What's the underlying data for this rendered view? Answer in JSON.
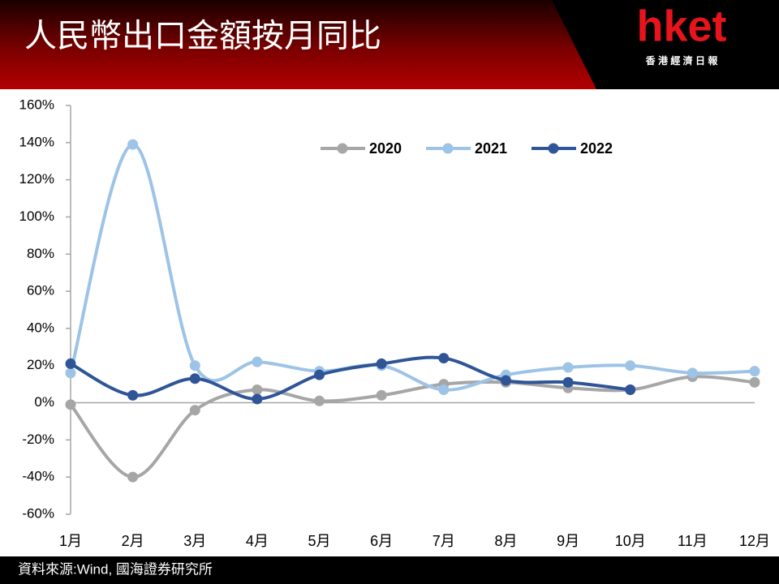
{
  "chart_data": {
    "type": "line",
    "title": "人民幣出口金額按月同比",
    "source": "資料來源:Wind, 國海證券研究所",
    "categories": [
      "1月",
      "2月",
      "3月",
      "4月",
      "5月",
      "6月",
      "7月",
      "8月",
      "9月",
      "10月",
      "11月",
      "12月"
    ],
    "series": [
      {
        "name": "2020",
        "color": "#a6a6a6",
        "values": [
          -1,
          -40,
          -4,
          7,
          1,
          4,
          10,
          11,
          8,
          7,
          14,
          11
        ]
      },
      {
        "name": "2021",
        "color": "#9dc3e6",
        "values": [
          16,
          139,
          20,
          22,
          17,
          20,
          7,
          15,
          19,
          20,
          16,
          17
        ]
      },
      {
        "name": "2022",
        "color": "#2f5597",
        "values": [
          21,
          4,
          13,
          2,
          15,
          21,
          24,
          12,
          11,
          7,
          null,
          null
        ]
      }
    ],
    "ylim": [
      -60,
      160
    ],
    "yticks": [
      {
        "value": -60,
        "label": "-60%"
      },
      {
        "value": -40,
        "label": "-40%"
      },
      {
        "value": -20,
        "label": "-20%"
      },
      {
        "value": 0,
        "label": "0%"
      },
      {
        "value": 20,
        "label": "20%"
      },
      {
        "value": 40,
        "label": "40%"
      },
      {
        "value": 60,
        "label": "60%"
      },
      {
        "value": 80,
        "label": "80%"
      },
      {
        "value": 100,
        "label": "100%"
      },
      {
        "value": 120,
        "label": "120%"
      },
      {
        "value": 140,
        "label": "140%"
      },
      {
        "value": 160,
        "label": "160%"
      }
    ],
    "grid": false,
    "legend": "top"
  },
  "logo": {
    "brand": "hket",
    "tagline": "香 港 經 濟 日 報"
  }
}
